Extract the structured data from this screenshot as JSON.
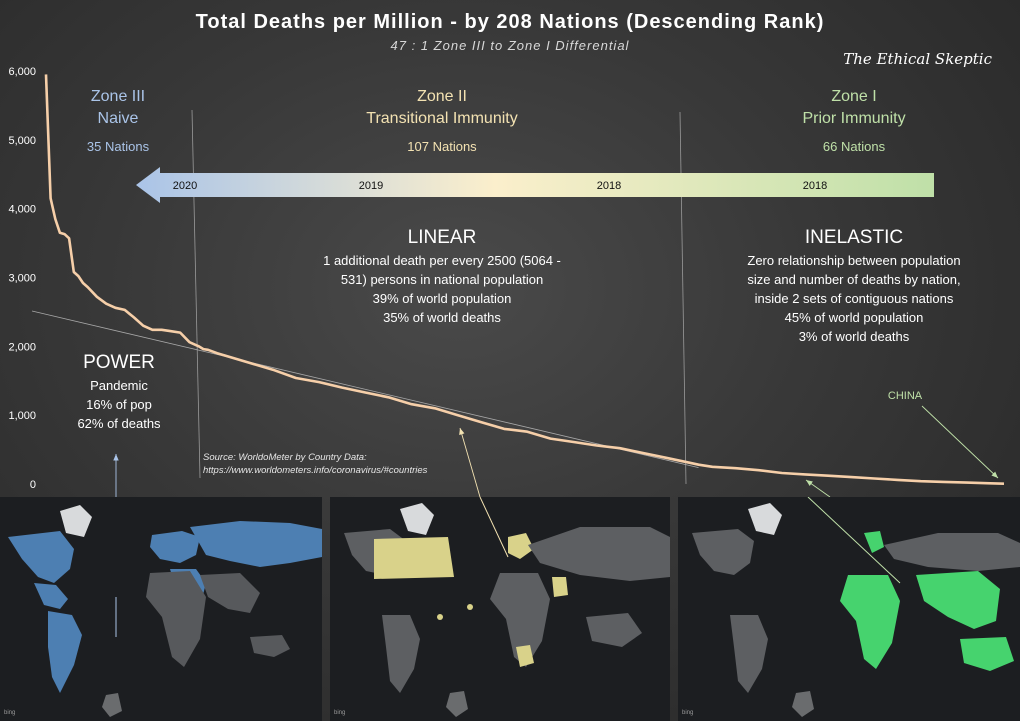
{
  "title": "Total Deaths per Million  - by 208 Nations  (Descending Rank)",
  "subtitle": "47 : 1 Zone III to Zone I Differential",
  "brand": "The Ethical Skeptic",
  "zones": [
    {
      "title": "Zone III",
      "subtitle": "Naive",
      "count": "35 Nations",
      "color": "#aac4e8"
    },
    {
      "title": "Zone II",
      "subtitle": "Transitional Immunity",
      "count": "107 Nations",
      "color": "#f3e2b2"
    },
    {
      "title": "Zone I",
      "subtitle": "Prior Immunity",
      "count": "66 Nations",
      "color": "#bfe0a8"
    }
  ],
  "arrow_years": [
    "2020",
    "2019",
    "2018",
    "2018"
  ],
  "regimes": {
    "power": {
      "title": "POWER",
      "lines": [
        "Pandemic",
        "16% of pop",
        "62% of deaths"
      ]
    },
    "linear": {
      "title": "LINEAR",
      "lines": [
        "1 additional death per every 2500 (5064 -",
        "531) persons in national population",
        "39% of world population",
        "35% of world deaths"
      ]
    },
    "inelastic": {
      "title": "INELASTIC",
      "lines": [
        "Zero relationship between population",
        "size and number of deaths by nation,",
        "inside 2 sets of contiguous nations",
        "45% of world population",
        "3% of world deaths"
      ]
    }
  },
  "source": [
    "Source: WorldoMeter by Country Data:",
    "https://www.worldometers.info/coronavirus/#countries"
  ],
  "china_label": "CHINA",
  "map_credit": "bing",
  "chart_data": {
    "type": "line",
    "ylim": [
      0,
      6000
    ],
    "yticks": [
      "0",
      "1,000",
      "2,000",
      "3,000",
      "4,000",
      "5,000",
      "6,000"
    ],
    "series": [
      {
        "x": [
          1,
          2,
          3,
          4,
          5,
          6,
          7,
          8,
          9,
          10,
          12,
          14,
          16,
          18,
          20,
          22,
          24,
          26,
          28,
          30,
          32,
          34,
          35,
          36,
          38,
          40,
          45,
          50,
          55,
          60,
          65,
          70,
          75,
          80,
          85,
          90,
          95,
          100,
          105,
          110,
          115,
          120,
          125,
          130,
          135,
          140,
          142,
          145,
          150,
          155,
          160,
          165,
          170,
          175,
          180,
          185,
          190,
          195,
          200,
          205,
          208
        ],
        "y": [
          5950,
          4150,
          3850,
          3650,
          3630,
          3570,
          3080,
          3020,
          2920,
          2860,
          2720,
          2620,
          2560,
          2530,
          2420,
          2300,
          2240,
          2240,
          2220,
          2200,
          2060,
          2000,
          1960,
          1950,
          1900,
          1860,
          1760,
          1660,
          1540,
          1480,
          1400,
          1330,
          1260,
          1160,
          1100,
          1000,
          900,
          800,
          760,
          660,
          610,
          560,
          520,
          450,
          380,
          310,
          280,
          250,
          230,
          200,
          160,
          140,
          120,
          100,
          80,
          60,
          40,
          30,
          20,
          10,
          5
        ]
      }
    ],
    "trendline": {
      "x": [
        1,
        142
      ],
      "y": [
        2530,
        180
      ]
    },
    "zone_boundaries": [
      35,
      142
    ],
    "color": "#f6cfa9",
    "arrow_gradient": [
      "#aac4e8",
      "#fbefcc",
      "#bfe0a8"
    ]
  }
}
